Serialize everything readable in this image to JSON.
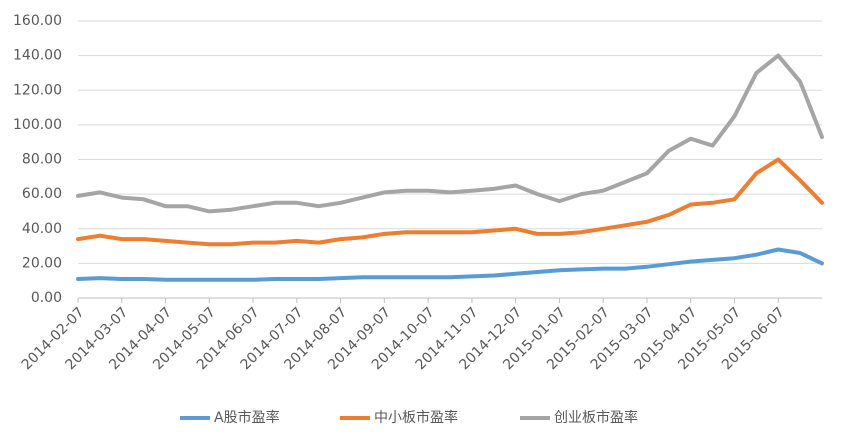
{
  "chart_data": {
    "type": "line",
    "categories": [
      "2014-02-07",
      null,
      "2014-03-07",
      null,
      "2014-04-07",
      null,
      "2014-05-07",
      null,
      "2014-06-07",
      null,
      "2014-07-07",
      null,
      "2014-08-07",
      null,
      "2014-09-07",
      null,
      "2014-10-07",
      null,
      "2014-11-07",
      null,
      "2014-12-07",
      null,
      "2015-01-07",
      null,
      "2015-02-07",
      null,
      "2015-03-07",
      null,
      "2015-04-07",
      null,
      "2015-05-07",
      null,
      "2015-06-07",
      null,
      null
    ],
    "series": [
      {
        "name": "A股市盈率",
        "color": "#5b9bd5",
        "values": [
          11,
          11.5,
          11,
          11,
          10.5,
          10.5,
          10.5,
          10.5,
          10.5,
          11,
          11,
          11,
          11.5,
          12,
          12,
          12,
          12,
          12,
          12.5,
          13,
          14,
          15,
          16,
          16.5,
          17,
          17,
          18,
          19.5,
          21,
          22,
          23,
          25,
          28,
          26,
          20
        ]
      },
      {
        "name": "中小板市盈率",
        "color": "#ed7d31",
        "values": [
          34,
          36,
          34,
          34,
          33,
          32,
          31,
          31,
          32,
          32,
          33,
          32,
          34,
          35,
          37,
          38,
          38,
          38,
          38,
          39,
          40,
          37,
          37,
          38,
          40,
          42,
          44,
          48,
          54,
          55,
          57,
          72,
          80,
          68,
          55
        ]
      },
      {
        "name": "创业板市盈率",
        "color": "#a5a5a5",
        "values": [
          59,
          61,
          58,
          57,
          53,
          53,
          50,
          51,
          53,
          55,
          55,
          53,
          55,
          58,
          61,
          62,
          62,
          61,
          62,
          63,
          65,
          60,
          56,
          60,
          62,
          67,
          72,
          85,
          92,
          88,
          105,
          130,
          140,
          125,
          93
        ]
      }
    ],
    "ylim": [
      0,
      160
    ],
    "yticks": [
      {
        "value": 0,
        "label": "0.00"
      },
      {
        "value": 20,
        "label": "20.00"
      },
      {
        "value": 40,
        "label": "40.00"
      },
      {
        "value": 60,
        "label": "60.00"
      },
      {
        "value": 80,
        "label": "80.00"
      },
      {
        "value": 100,
        "label": "100.00"
      },
      {
        "value": 120,
        "label": "120.00"
      },
      {
        "value": 140,
        "label": "140.00"
      },
      {
        "value": 160,
        "label": "160.00"
      }
    ],
    "grid": true,
    "legend": "bottom"
  }
}
